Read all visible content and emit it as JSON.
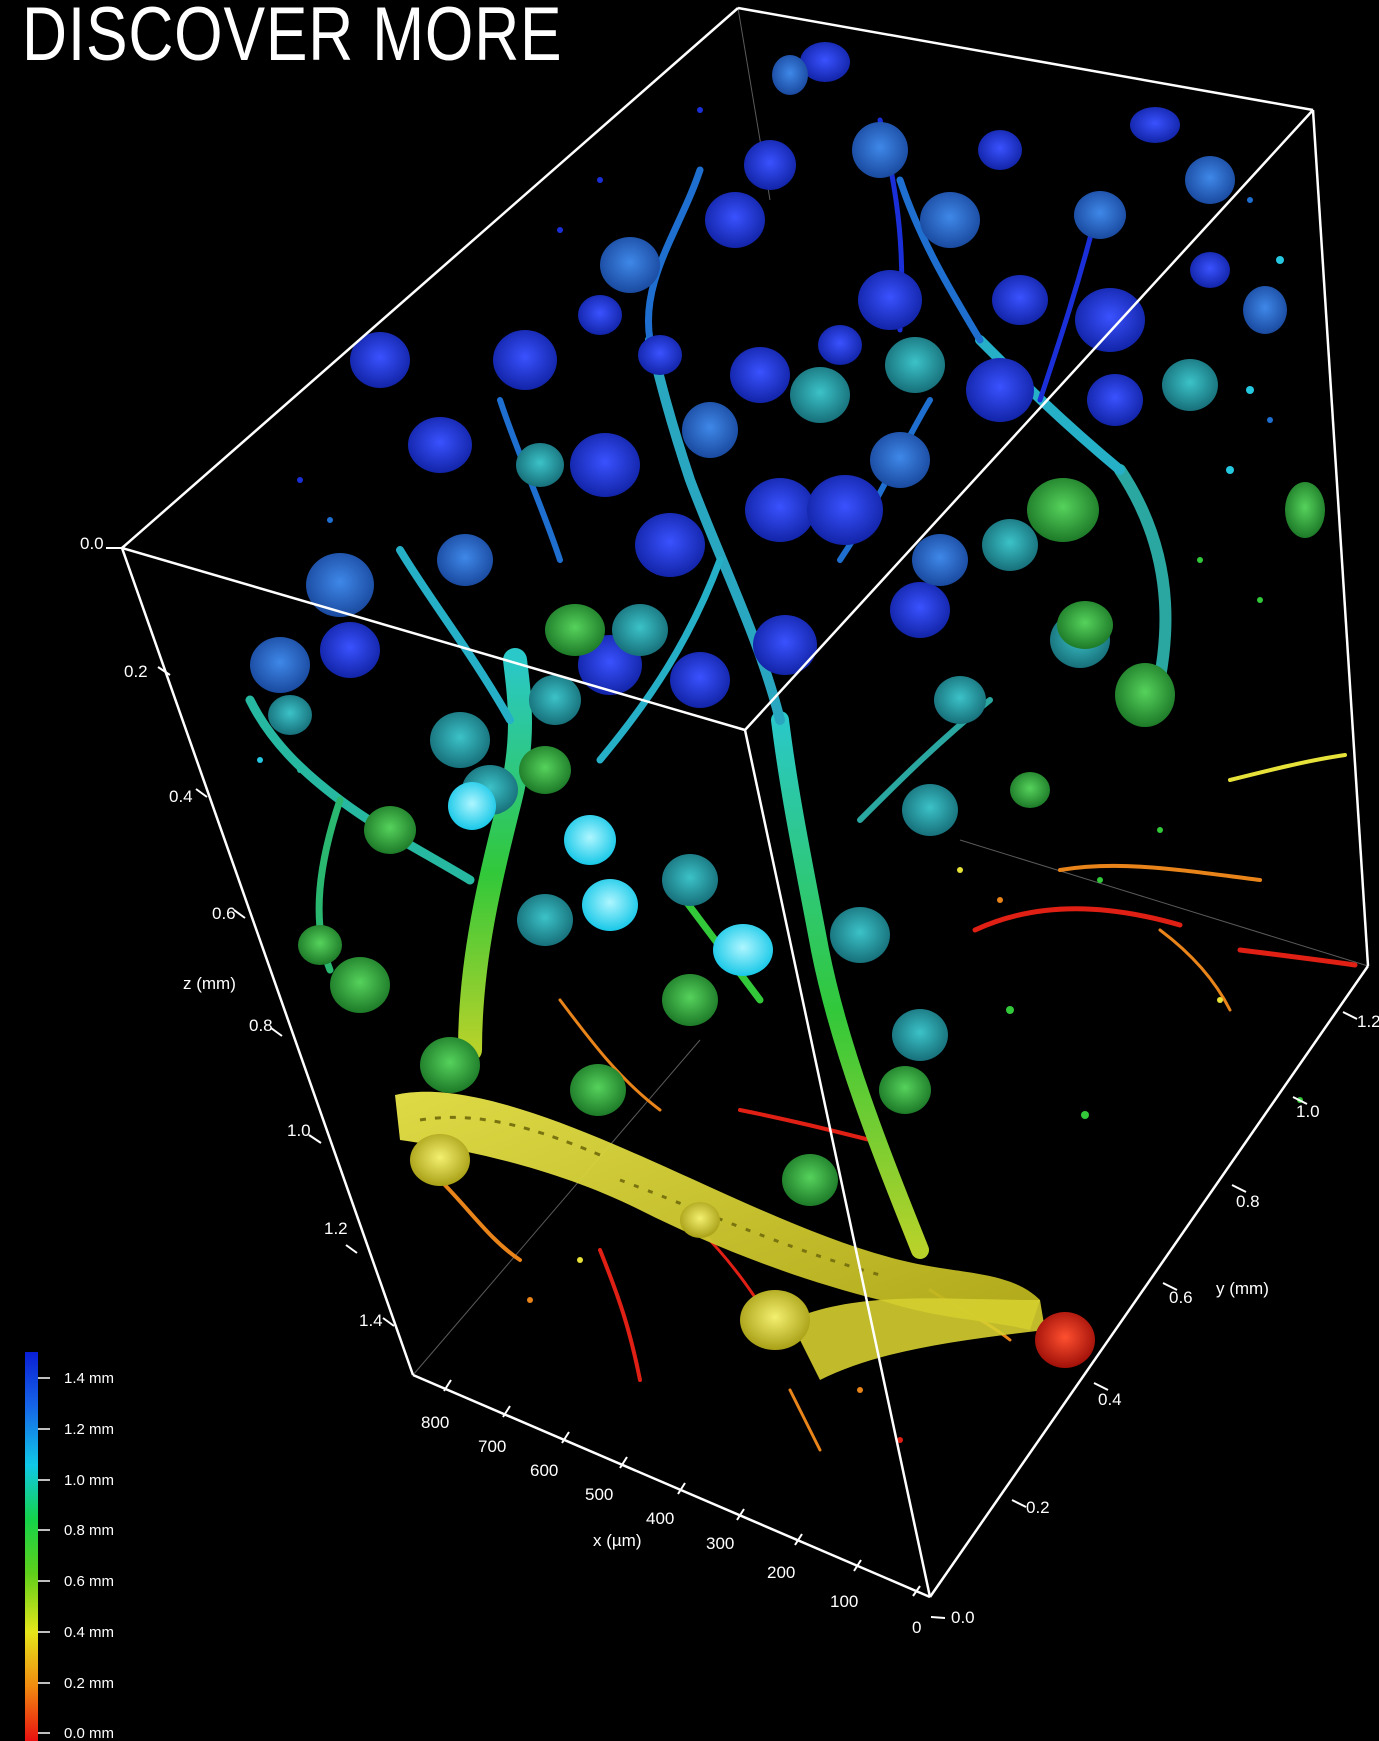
{
  "headline": "DISCOVER MORE",
  "axes": {
    "z": {
      "title": "z (mm)",
      "ticks": [
        "0.0",
        "0.2",
        "0.4",
        "0.6",
        "0.8",
        "1.0",
        "1.2",
        "1.4"
      ]
    },
    "x": {
      "title": "x (µm)",
      "ticks": [
        "800",
        "700",
        "600",
        "500",
        "400",
        "300",
        "200",
        "100",
        "0"
      ]
    },
    "y": {
      "title": "y (mm)",
      "ticks": [
        "0.0",
        "0.2",
        "0.4",
        "0.6",
        "0.8",
        "1.0",
        "1.2"
      ]
    }
  },
  "colorbar": {
    "labels": [
      "1.4 mm",
      "1.2 mm",
      "1.0 mm",
      "0.8 mm",
      "0.6 mm",
      "0.4 mm",
      "0.2 mm",
      "0.0 mm"
    ],
    "stops": [
      "#0a1fd6",
      "#1565e8",
      "#10c8e8",
      "#14d24a",
      "#5fd01a",
      "#e6e61a",
      "#f08a10",
      "#e81010"
    ]
  },
  "palette": {
    "background": "#000000",
    "box_lines": "#ffffff",
    "deep_blue": "#1a2fd8",
    "mid_blue": "#1e6fd0",
    "cyan": "#26c8e0",
    "teal": "#2aa7a0",
    "green": "#32c83a",
    "yellow": "#e6e23a",
    "orange": "#e8841a",
    "red": "#e02014"
  }
}
